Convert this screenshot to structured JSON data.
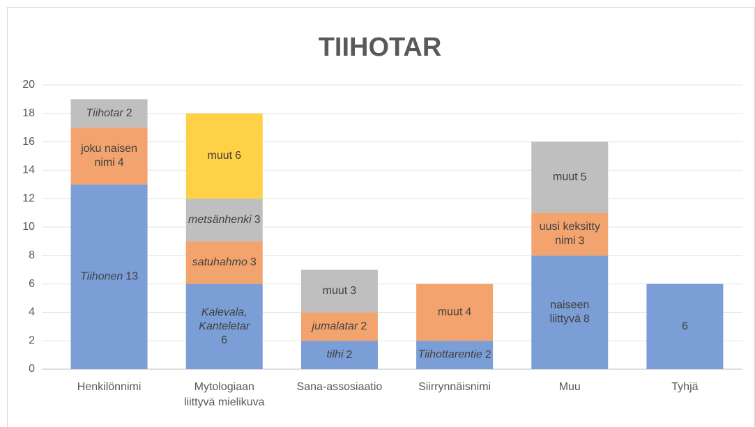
{
  "chart_data": {
    "type": "stacked-bar",
    "title": "TIIHOTAR",
    "categories": [
      "Henkilönnimi",
      "Mytologiaan\nliittyvä mielikuva",
      "Sana-assosiaatio",
      "Siirrynnäisnimi",
      "Muu",
      "Tyhjä"
    ],
    "stacks": [
      [
        {
          "name": "Tiihonen",
          "italic": true,
          "value": 13,
          "color": "#7b9ed6"
        },
        {
          "name": "joku naisen\nnimi",
          "italic": false,
          "value": 4,
          "color": "#f3a46e"
        },
        {
          "name": "Tiihotar",
          "italic": true,
          "value": 2,
          "color": "#bfbfbf"
        }
      ],
      [
        {
          "name": "Kalevala,\nKanteletar\n",
          "italic": true,
          "value": 6,
          "color": "#7b9ed6"
        },
        {
          "name": "satuhahmo",
          "italic": true,
          "value": 3,
          "color": "#f3a46e"
        },
        {
          "name": "metsänhenki",
          "italic": true,
          "value": 3,
          "color": "#bfbfbf"
        },
        {
          "name": "muut",
          "italic": false,
          "value": 6,
          "color": "#ffd147"
        }
      ],
      [
        {
          "name": "tilhi",
          "italic": true,
          "value": 2,
          "color": "#7b9ed6"
        },
        {
          "name": "jumalatar",
          "italic": true,
          "value": 2,
          "color": "#f3a46e"
        },
        {
          "name": "muut",
          "italic": false,
          "value": 3,
          "color": "#bfbfbf"
        }
      ],
      [
        {
          "name": "Tiihottarentie",
          "italic": true,
          "value": 2,
          "color": "#7b9ed6"
        },
        {
          "name": "muut",
          "italic": false,
          "value": 4,
          "color": "#f3a46e"
        }
      ],
      [
        {
          "name": "naiseen\nliittyvä",
          "italic": false,
          "value": 8,
          "color": "#7b9ed6"
        },
        {
          "name": "uusi keksitty\nnimi",
          "italic": false,
          "value": 3,
          "color": "#f3a46e"
        },
        {
          "name": "muut",
          "italic": false,
          "value": 5,
          "color": "#bfbfbf"
        }
      ],
      [
        {
          "value": 6,
          "color": "#7b9ed6"
        }
      ]
    ],
    "ylim": [
      0,
      20
    ],
    "yticks": [
      0,
      2,
      4,
      6,
      8,
      10,
      12,
      14,
      16,
      18,
      20
    ],
    "grid": true
  }
}
